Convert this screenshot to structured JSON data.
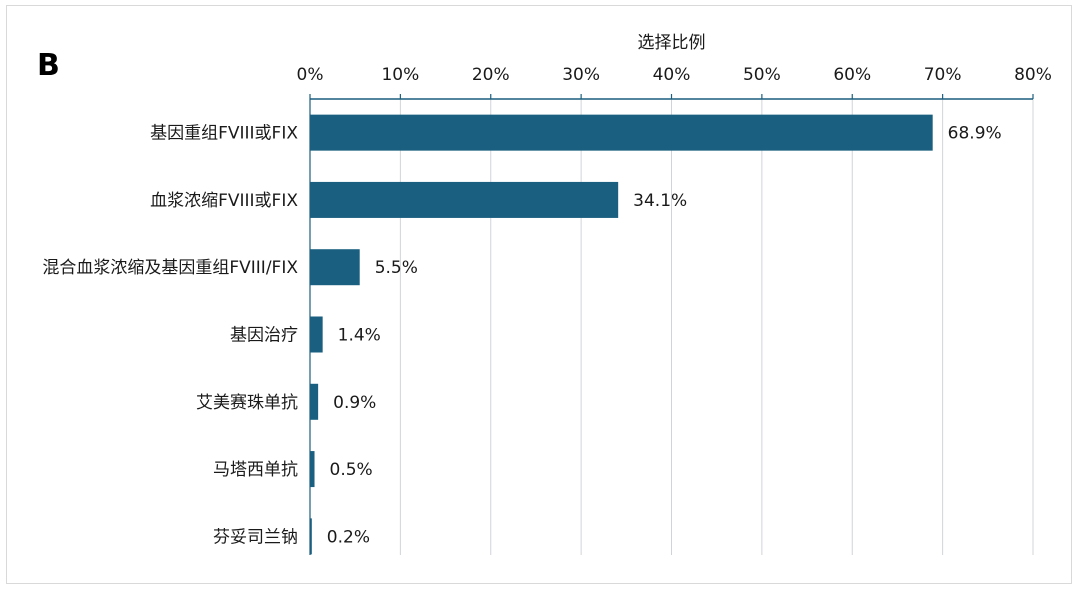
{
  "panel_label": "B",
  "chart_data": {
    "type": "bar",
    "orientation": "horizontal",
    "title": "",
    "xlabel": "选择比例",
    "ylabel": "",
    "xlim": [
      0,
      80
    ],
    "x_ticks": [
      0,
      10,
      20,
      30,
      40,
      50,
      60,
      70,
      80
    ],
    "x_tick_labels": [
      "0%",
      "10%",
      "20%",
      "30%",
      "40%",
      "50%",
      "60%",
      "70%",
      "80%"
    ],
    "x_axis_position": "top",
    "grid": "vertical",
    "categories": [
      "基因重组FVIII或FIX",
      "血浆浓缩FVIII或FIX",
      "混合血浆浓缩及基因重组FVIII/FIX",
      "基因治疗",
      "艾美赛珠单抗",
      "马塔西单抗",
      "芬妥司兰钠"
    ],
    "values": [
      68.9,
      34.1,
      5.5,
      1.4,
      0.9,
      0.5,
      0.2
    ],
    "value_labels": [
      "68.9%",
      "34.1%",
      "5.5%",
      "1.4%",
      "0.9%",
      "0.5%",
      "0.2%"
    ],
    "bar_color": "#1a5f7f",
    "axis_color": "#1a5f7f",
    "grid_color": "#d0d4d8"
  }
}
